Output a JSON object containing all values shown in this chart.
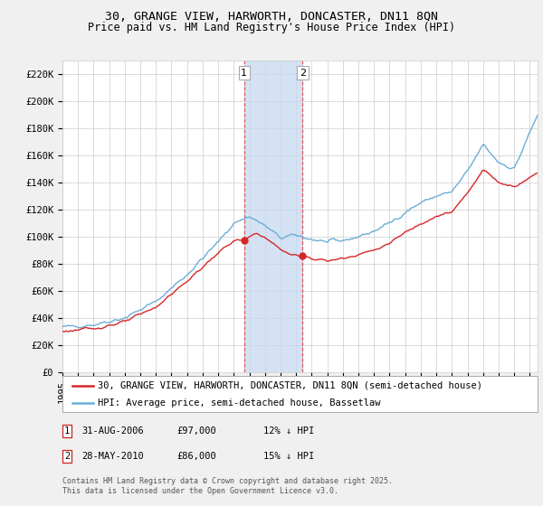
{
  "title": "30, GRANGE VIEW, HARWORTH, DONCASTER, DN11 8QN",
  "subtitle": "Price paid vs. HM Land Registry's House Price Index (HPI)",
  "ylabel_ticks": [
    "£0",
    "£20K",
    "£40K",
    "£60K",
    "£80K",
    "£100K",
    "£120K",
    "£140K",
    "£160K",
    "£180K",
    "£200K",
    "£220K"
  ],
  "ytick_values": [
    0,
    20000,
    40000,
    60000,
    80000,
    100000,
    120000,
    140000,
    160000,
    180000,
    200000,
    220000
  ],
  "ylim": [
    0,
    230000
  ],
  "xlim_start": 1995.0,
  "xlim_end": 2025.5,
  "hpi_color": "#6baed6",
  "price_color": "#d62728",
  "background_color": "#f0f0f0",
  "plot_bg_color": "#ffffff",
  "grid_color": "#cccccc",
  "sale1_x": 2006.667,
  "sale1_y": 97000,
  "sale2_x": 2010.417,
  "sale2_y": 86000,
  "legend_line1": "30, GRANGE VIEW, HARWORTH, DONCASTER, DN11 8QN (semi-detached house)",
  "legend_line2": "HPI: Average price, semi-detached house, Bassetlaw",
  "footer": "Contains HM Land Registry data © Crown copyright and database right 2025.\nThis data is licensed under the Open Government Licence v3.0.",
  "title_fontsize": 9.5,
  "subtitle_fontsize": 8.5,
  "tick_fontsize": 7.5,
  "legend_fontsize": 7.5
}
